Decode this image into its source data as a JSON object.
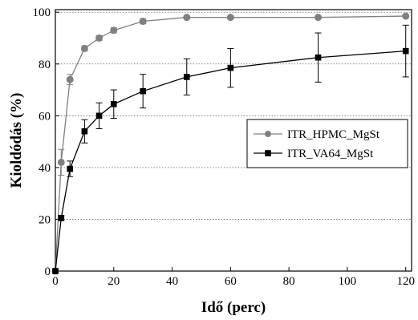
{
  "chart_data": {
    "type": "line",
    "title": "",
    "xlabel": "Idő (perc)",
    "ylabel": "Kioldódás (%)",
    "xlim": [
      0,
      122
    ],
    "ylim": [
      0,
      101
    ],
    "xticks": [
      0,
      20,
      40,
      60,
      80,
      100,
      120
    ],
    "yticks": [
      0,
      20,
      40,
      60,
      80,
      100
    ],
    "xtick_labels": [
      "0",
      "20",
      "40",
      "60",
      "80",
      "100",
      "120"
    ],
    "ytick_labels": [
      "0",
      "20",
      "40",
      "60",
      "80",
      "100"
    ],
    "grid": "horizontal-dotted",
    "legend_position": "right",
    "series": [
      {
        "name": "ITR_HPMC_MgSt",
        "marker": "circle",
        "color": "#808080",
        "x": [
          0,
          2,
          5,
          10,
          15,
          20,
          30,
          45,
          60,
          90,
          120
        ],
        "y": [
          0,
          42,
          74,
          86,
          90,
          93,
          96.5,
          98,
          98,
          98,
          98.5
        ],
        "err": [
          0,
          5,
          2,
          1,
          1,
          1,
          1,
          0.5,
          0.5,
          0.5,
          0.5
        ]
      },
      {
        "name": "ITR_VA64_MgSt",
        "marker": "square",
        "color": "#000000",
        "x": [
          0,
          2,
          5,
          10,
          15,
          20,
          30,
          45,
          60,
          90,
          120
        ],
        "y": [
          0,
          20.5,
          39.5,
          54,
          60,
          64.5,
          69.5,
          75,
          78.5,
          82.5,
          85
        ],
        "err": [
          0,
          1,
          3,
          4.5,
          5,
          5.5,
          6.5,
          7,
          7.5,
          9.5,
          10
        ]
      }
    ]
  }
}
